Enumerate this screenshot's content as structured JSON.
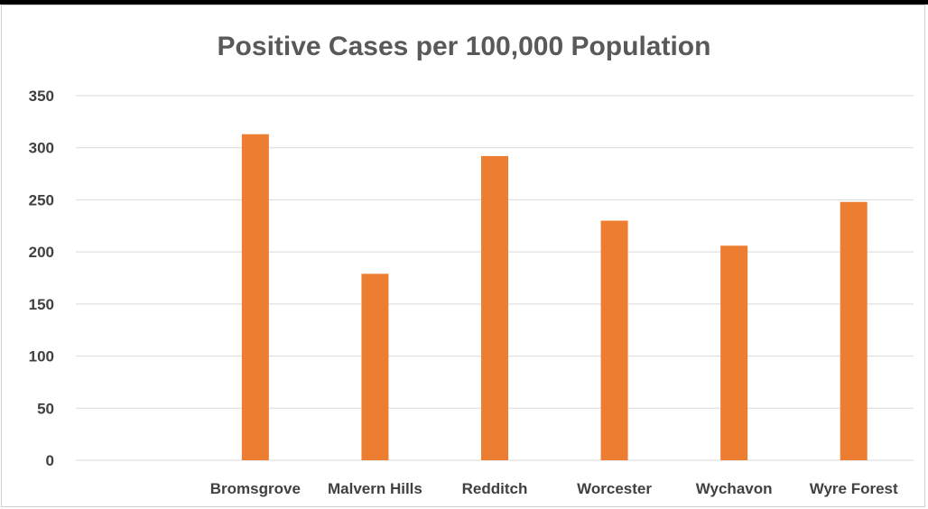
{
  "chart_data": {
    "type": "bar",
    "title": "Positive Cases per 100,000 Population",
    "categories": [
      "",
      "Bromsgrove",
      "Malvern Hills",
      "Redditch",
      "Worcester",
      "Wychavon",
      "Wyre Forest"
    ],
    "values": [
      null,
      313,
      179,
      292,
      230,
      206,
      248
    ],
    "ylim": [
      0,
      350
    ],
    "yticks": [
      0,
      50,
      100,
      150,
      200,
      250,
      300,
      350
    ],
    "xlabel": "",
    "ylabel": "",
    "grid": true,
    "legend": "none",
    "bar_color": "#ED7D31",
    "grid_color": "#D9D9D9"
  }
}
